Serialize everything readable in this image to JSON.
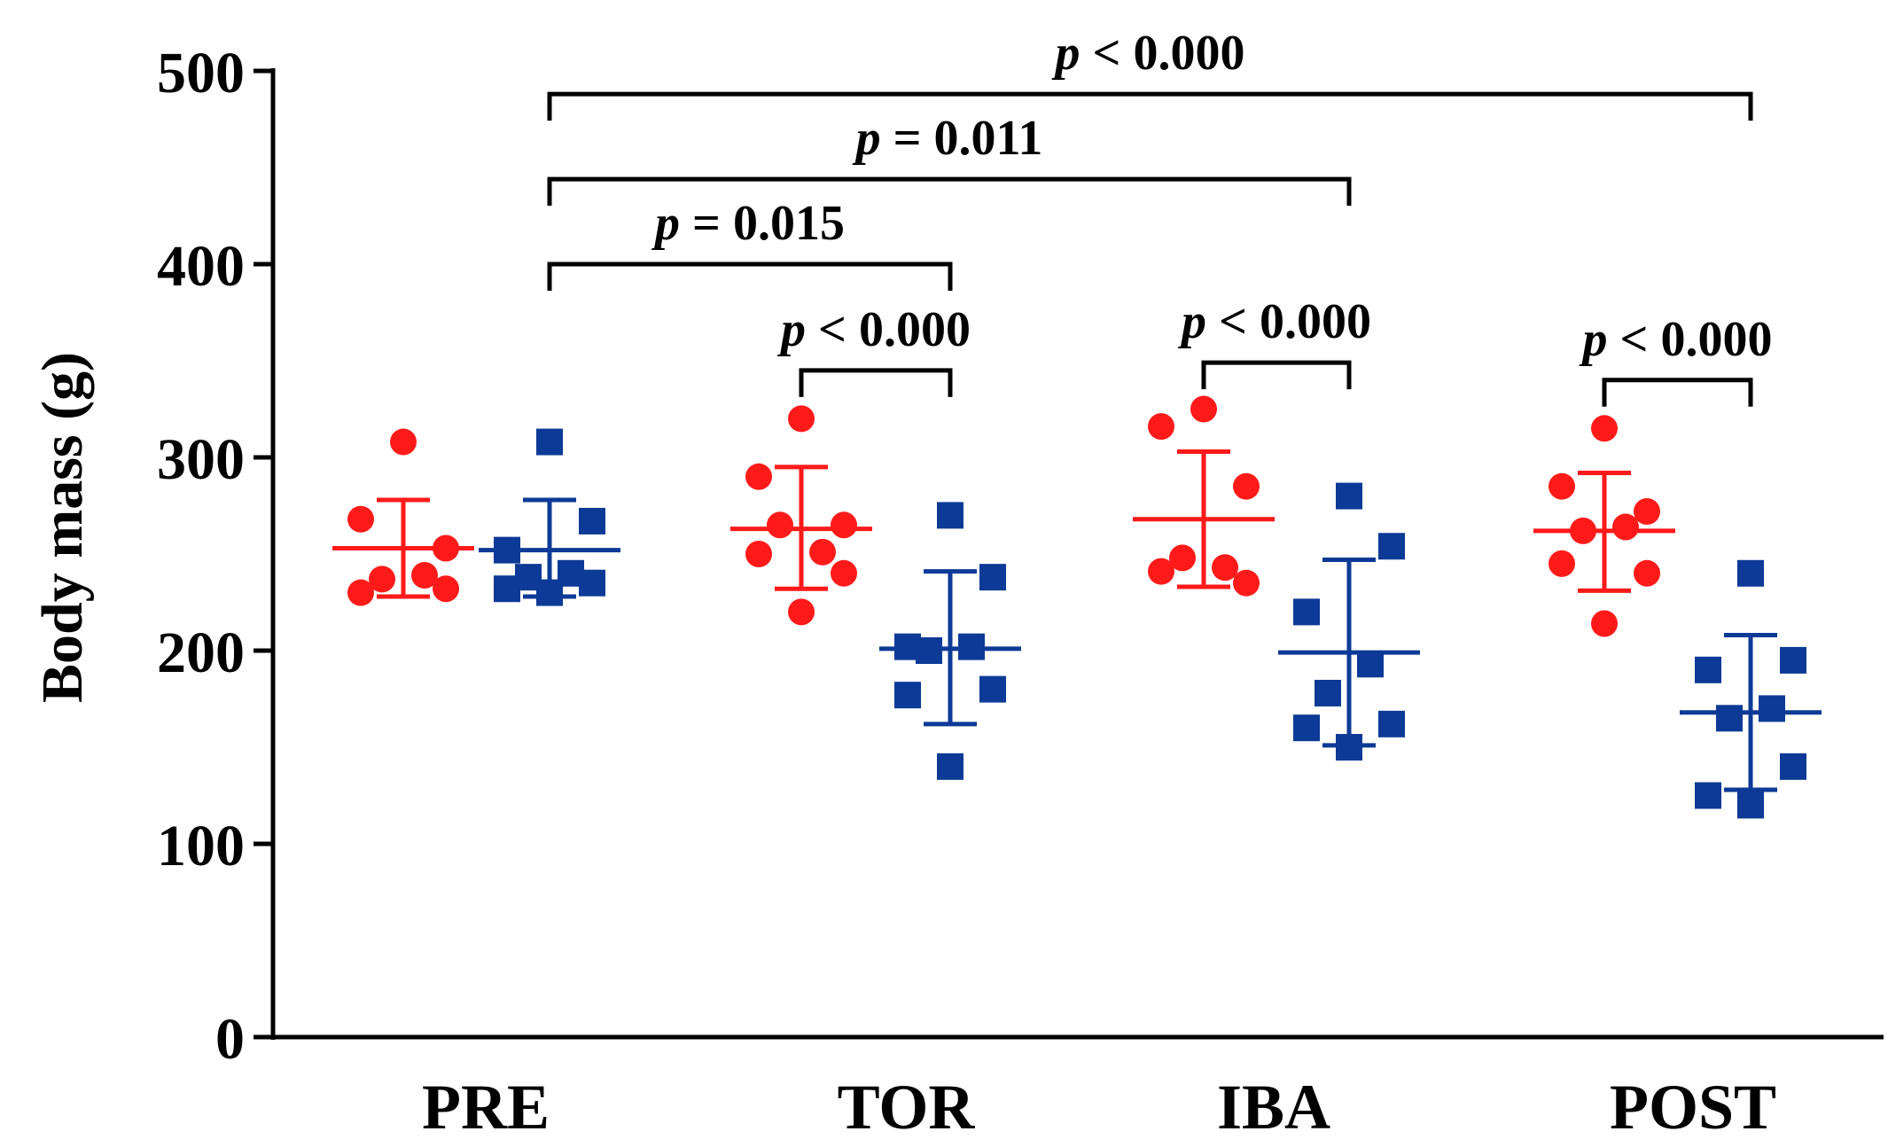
{
  "chart_data": {
    "type": "scatter",
    "ylabel": "Body mass (g)",
    "xlabel": "",
    "ylim": [
      0,
      500
    ],
    "yticks": [
      "0",
      "100",
      "200",
      "300",
      "400",
      "500"
    ],
    "categories": [
      "PRE",
      "TOR",
      "IBA",
      "POST"
    ],
    "colors": {
      "red": "#ff1a1a",
      "blue": "#0d3a96",
      "axis": "#000000"
    },
    "series": [
      {
        "name": "group-red",
        "marker": "circle",
        "groups": [
          {
            "category": "PRE",
            "mean": 253,
            "sd_low": 228,
            "sd_high": 278,
            "points": [
              308,
              268,
              253,
              237,
              239,
              230,
              232
            ]
          },
          {
            "category": "TOR",
            "mean": 263,
            "sd_low": 232,
            "sd_high": 295,
            "points": [
              320,
              290,
              265,
              265,
              251,
              250,
              240,
              220
            ]
          },
          {
            "category": "IBA",
            "mean": 268,
            "sd_low": 233,
            "sd_high": 303,
            "points": [
              325,
              316,
              285,
              248,
              243,
              241,
              235
            ]
          },
          {
            "category": "POST",
            "mean": 262,
            "sd_low": 231,
            "sd_high": 292,
            "points": [
              315,
              285,
              272,
              262,
              264,
              245,
              240,
              214
            ]
          }
        ]
      },
      {
        "name": "group-blue",
        "marker": "square",
        "groups": [
          {
            "category": "PRE",
            "mean": 252,
            "sd_low": 228,
            "sd_high": 278,
            "points": [
              308,
              267,
              252,
              240,
              238,
              235,
              232,
              230
            ]
          },
          {
            "category": "TOR",
            "mean": 201,
            "sd_low": 162,
            "sd_high": 241,
            "points": [
              270,
              238,
              202,
              202,
              200,
              180,
              177,
              140
            ]
          },
          {
            "category": "IBA",
            "mean": 199,
            "sd_low": 151,
            "sd_high": 247,
            "points": [
              280,
              254,
              220,
              193,
              178,
              162,
              160,
              150
            ]
          },
          {
            "category": "POST",
            "mean": 168,
            "sd_low": 128,
            "sd_high": 208,
            "points": [
              240,
              195,
              190,
              170,
              165,
              140,
              125,
              120
            ]
          }
        ]
      }
    ],
    "annotations": [
      {
        "label": "p < 0.000",
        "from": "PRE-blue",
        "to": "POST-blue",
        "y": 488
      },
      {
        "label": "p = 0.011",
        "from": "PRE-blue",
        "to": "IBA-blue",
        "y": 444
      },
      {
        "label": "p = 0.015",
        "from": "PRE-blue",
        "to": "TOR-blue",
        "y": 400
      },
      {
        "label": "p < 0.000",
        "from": "TOR-red",
        "to": "TOR-blue",
        "y": 345
      },
      {
        "label": "p < 0.000",
        "from": "IBA-red",
        "to": "IBA-blue",
        "y": 349
      },
      {
        "label": "p < 0.000",
        "from": "POST-red",
        "to": "POST-blue",
        "y": 340
      }
    ]
  }
}
